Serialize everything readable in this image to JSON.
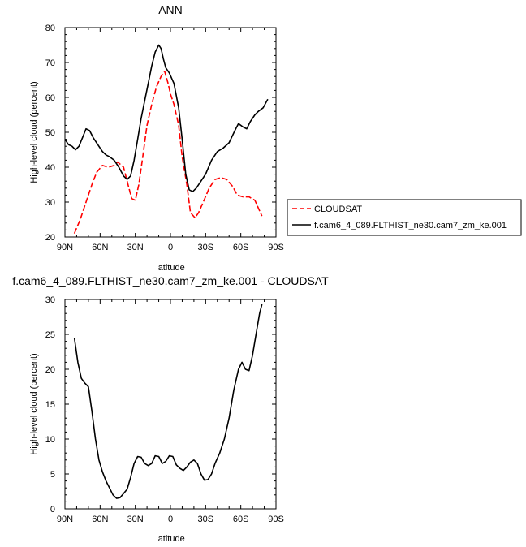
{
  "chart_data": [
    {
      "type": "line",
      "title": "ANN",
      "xlabel": "latitude",
      "ylabel": "High-level cloud (percent)",
      "xlim": [
        90,
        -90
      ],
      "ylim": [
        20,
        80
      ],
      "xticks": [
        90,
        60,
        30,
        0,
        -30,
        -60,
        -90
      ],
      "xtick_labels": [
        "90N",
        "60N",
        "30N",
        "0",
        "30S",
        "60S",
        "90S"
      ],
      "yticks": [
        20,
        30,
        40,
        50,
        60,
        70,
        80
      ],
      "ytick_labels": [
        "20",
        "30",
        "40",
        "50",
        "60",
        "70",
        "80"
      ],
      "legend_position": "right",
      "series": [
        {
          "name": "CLOUDSAT",
          "color": "#ff0000",
          "style": "dashed",
          "points": [
            [
              82,
              21
            ],
            [
              77,
              25
            ],
            [
              72,
              30
            ],
            [
              67,
              35
            ],
            [
              63,
              38.5
            ],
            [
              58,
              40.5
            ],
            [
              53,
              40
            ],
            [
              48,
              40.5
            ],
            [
              45,
              41.5
            ],
            [
              40,
              40
            ],
            [
              37,
              36
            ],
            [
              33,
              31
            ],
            [
              30,
              30.5
            ],
            [
              27,
              35
            ],
            [
              24,
              42
            ],
            [
              20,
              52
            ],
            [
              16,
              58
            ],
            [
              12,
              63
            ],
            [
              8,
              66
            ],
            [
              5,
              67.5
            ],
            [
              2,
              64
            ],
            [
              0,
              61
            ],
            [
              -3,
              58
            ],
            [
              -7,
              52
            ],
            [
              -10,
              43
            ],
            [
              -14,
              35
            ],
            [
              -17,
              27
            ],
            [
              -21,
              25.5
            ],
            [
              -24,
              27
            ],
            [
              -28,
              30
            ],
            [
              -33,
              34
            ],
            [
              -38,
              36.5
            ],
            [
              -43,
              37
            ],
            [
              -48,
              36.5
            ],
            [
              -53,
              34.5
            ],
            [
              -57,
              32
            ],
            [
              -62,
              31.5
            ],
            [
              -67,
              31.5
            ],
            [
              -72,
              30.5
            ],
            [
              -78,
              26
            ]
          ]
        },
        {
          "name": "f.cam6_4_089.FLTHIST_ne30.cam7_zm_ke.001",
          "color": "#000000",
          "style": "solid",
          "points": [
            [
              90,
              48
            ],
            [
              87,
              46.5
            ],
            [
              84,
              46
            ],
            [
              81,
              45
            ],
            [
              78,
              46
            ],
            [
              75,
              48.5
            ],
            [
              72,
              51
            ],
            [
              69,
              50.5
            ],
            [
              66,
              48.5
            ],
            [
              62,
              46.5
            ],
            [
              58,
              44.5
            ],
            [
              55,
              43.5
            ],
            [
              52,
              43
            ],
            [
              48,
              42
            ],
            [
              44,
              40
            ],
            [
              40,
              37.5
            ],
            [
              37,
              36.5
            ],
            [
              34,
              37.5
            ],
            [
              31,
              42
            ],
            [
              28,
              48
            ],
            [
              25,
              54
            ],
            [
              22,
              59
            ],
            [
              19,
              64
            ],
            [
              16,
              69
            ],
            [
              13,
              73
            ],
            [
              10,
              75
            ],
            [
              8,
              74
            ],
            [
              6,
              71
            ],
            [
              4,
              68.5
            ],
            [
              1,
              67
            ],
            [
              -3,
              64
            ],
            [
              -7,
              57
            ],
            [
              -10,
              48
            ],
            [
              -13,
              38
            ],
            [
              -16,
              33.5
            ],
            [
              -19,
              33
            ],
            [
              -22,
              34
            ],
            [
              -26,
              36
            ],
            [
              -30,
              38
            ],
            [
              -35,
              42
            ],
            [
              -40,
              44.5
            ],
            [
              -45,
              45.5
            ],
            [
              -50,
              47
            ],
            [
              -55,
              50.5
            ],
            [
              -58,
              52.5
            ],
            [
              -62,
              51.5
            ],
            [
              -65,
              51
            ],
            [
              -68,
              53
            ],
            [
              -72,
              55
            ],
            [
              -75,
              56
            ],
            [
              -79,
              57
            ],
            [
              -83,
              59.5
            ]
          ]
        }
      ]
    },
    {
      "type": "line",
      "title": "f.cam6_4_089.FLTHIST_ne30.cam7_zm_ke.001 - CLOUDSAT",
      "xlabel": "latitude",
      "ylabel": "High-level cloud (percent)",
      "xlim": [
        90,
        -90
      ],
      "ylim": [
        0,
        30
      ],
      "xticks": [
        90,
        60,
        30,
        0,
        -30,
        -60,
        -90
      ],
      "xtick_labels": [
        "90N",
        "60N",
        "30N",
        "0",
        "30S",
        "60S",
        "90S"
      ],
      "yticks": [
        0,
        5,
        10,
        15,
        20,
        25,
        30
      ],
      "ytick_labels": [
        "0",
        "5",
        "10",
        "15",
        "20",
        "25",
        "30"
      ],
      "series": [
        {
          "color": "#000000",
          "style": "solid",
          "points": [
            [
              82,
              24.5
            ],
            [
              79,
              21
            ],
            [
              76,
              18.7
            ],
            [
              73,
              18
            ],
            [
              70,
              17.5
            ],
            [
              67,
              14
            ],
            [
              64,
              10
            ],
            [
              61,
              7
            ],
            [
              58,
              5.3
            ],
            [
              55,
              4
            ],
            [
              52,
              3
            ],
            [
              49,
              2
            ],
            [
              46,
              1.5
            ],
            [
              43,
              1.6
            ],
            [
              40,
              2.2
            ],
            [
              37,
              2.8
            ],
            [
              34,
              4.5
            ],
            [
              31,
              6.5
            ],
            [
              28,
              7.5
            ],
            [
              25,
              7.4
            ],
            [
              22,
              6.5
            ],
            [
              19,
              6.2
            ],
            [
              16,
              6.5
            ],
            [
              13,
              7.6
            ],
            [
              10,
              7.5
            ],
            [
              7,
              6.5
            ],
            [
              4,
              6.8
            ],
            [
              1,
              7.6
            ],
            [
              -2,
              7.5
            ],
            [
              -5,
              6.3
            ],
            [
              -8,
              5.8
            ],
            [
              -11,
              5.5
            ],
            [
              -14,
              6
            ],
            [
              -17,
              6.7
            ],
            [
              -20,
              7
            ],
            [
              -23,
              6.5
            ],
            [
              -26,
              5
            ],
            [
              -29,
              4.1
            ],
            [
              -32,
              4.2
            ],
            [
              -35,
              5
            ],
            [
              -38,
              6.5
            ],
            [
              -42,
              8
            ],
            [
              -46,
              10
            ],
            [
              -50,
              13
            ],
            [
              -54,
              17
            ],
            [
              -58,
              20
            ],
            [
              -61,
              21
            ],
            [
              -64,
              20
            ],
            [
              -67,
              19.8
            ],
            [
              -70,
              22
            ],
            [
              -73,
              25
            ],
            [
              -76,
              28
            ],
            [
              -78,
              29.3
            ]
          ]
        }
      ]
    }
  ]
}
